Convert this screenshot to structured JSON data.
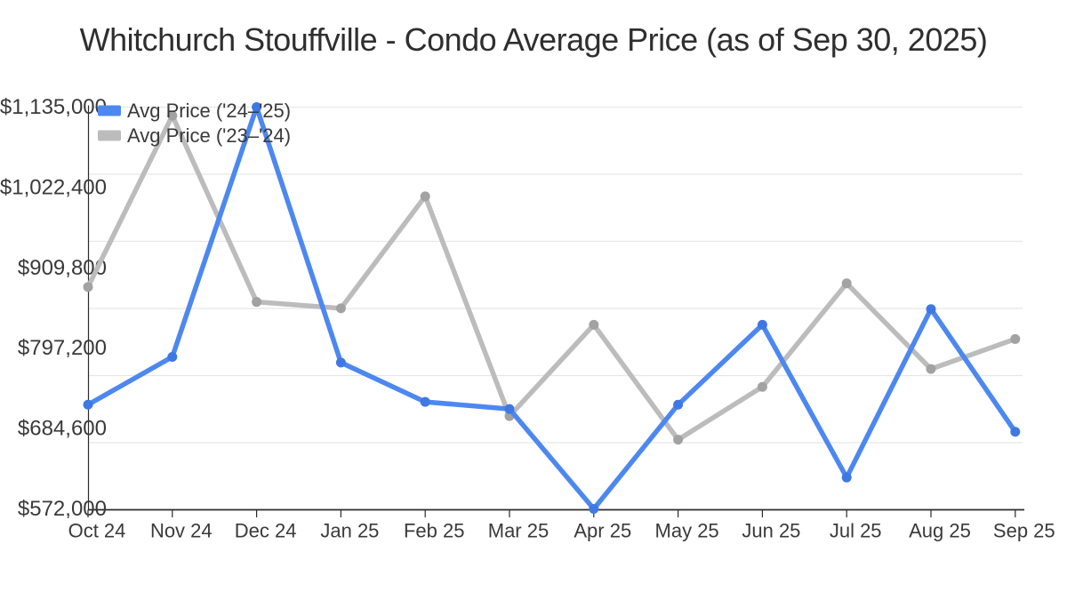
{
  "title": "Whitchurch Stouffville - Condo Average Price (as of Sep 30, 2025)",
  "colors": {
    "series_current": "#4d88f0",
    "series_current_point": "#3e79e3",
    "series_prior": "#bcbcbc",
    "series_prior_point": "#a2a2a2",
    "gridline": "#e7e7e7",
    "axis": "#2b2b2b",
    "text": "#3a3a3a",
    "title_text": "#2f2f2f"
  },
  "legend": [
    {
      "label": "Avg Price ('24–'25)"
    },
    {
      "label": "Avg Price ('23–'24)"
    }
  ],
  "chart_data": {
    "type": "line",
    "title": "Whitchurch Stouffville - Condo Average Price (as of Sep 30, 2025)",
    "categories": [
      "Oct 24",
      "Nov 24",
      "Dec 24",
      "Jan 25",
      "Feb 25",
      "Mar 25",
      "Apr 25",
      "May 25",
      "Jun 25",
      "Jul 25",
      "Aug 25",
      "Sep 25"
    ],
    "series": [
      {
        "name": "Avg Price ('24–'25)",
        "values": [
          718000,
          785000,
          1135000,
          777000,
          722000,
          712000,
          572000,
          718000,
          830000,
          616000,
          852000,
          680000
        ]
      },
      {
        "name": "Avg Price ('23–'24)",
        "values": [
          883000,
          1123000,
          862000,
          853000,
          1010000,
          702000,
          830000,
          669000,
          743000,
          888000,
          768000,
          810000
        ]
      }
    ],
    "y_tick_labels": [
      "$1,135,000",
      "$1,022,400",
      "$909,800",
      "$797,200",
      "$684,600",
      "$572,000"
    ],
    "y_tick_values": [
      1135000,
      1022400,
      909800,
      797200,
      684600,
      572000
    ],
    "ylim": [
      572000,
      1135000
    ],
    "xlabel": "",
    "ylabel": "",
    "grid": true,
    "legend_position": "inside-top-left"
  }
}
